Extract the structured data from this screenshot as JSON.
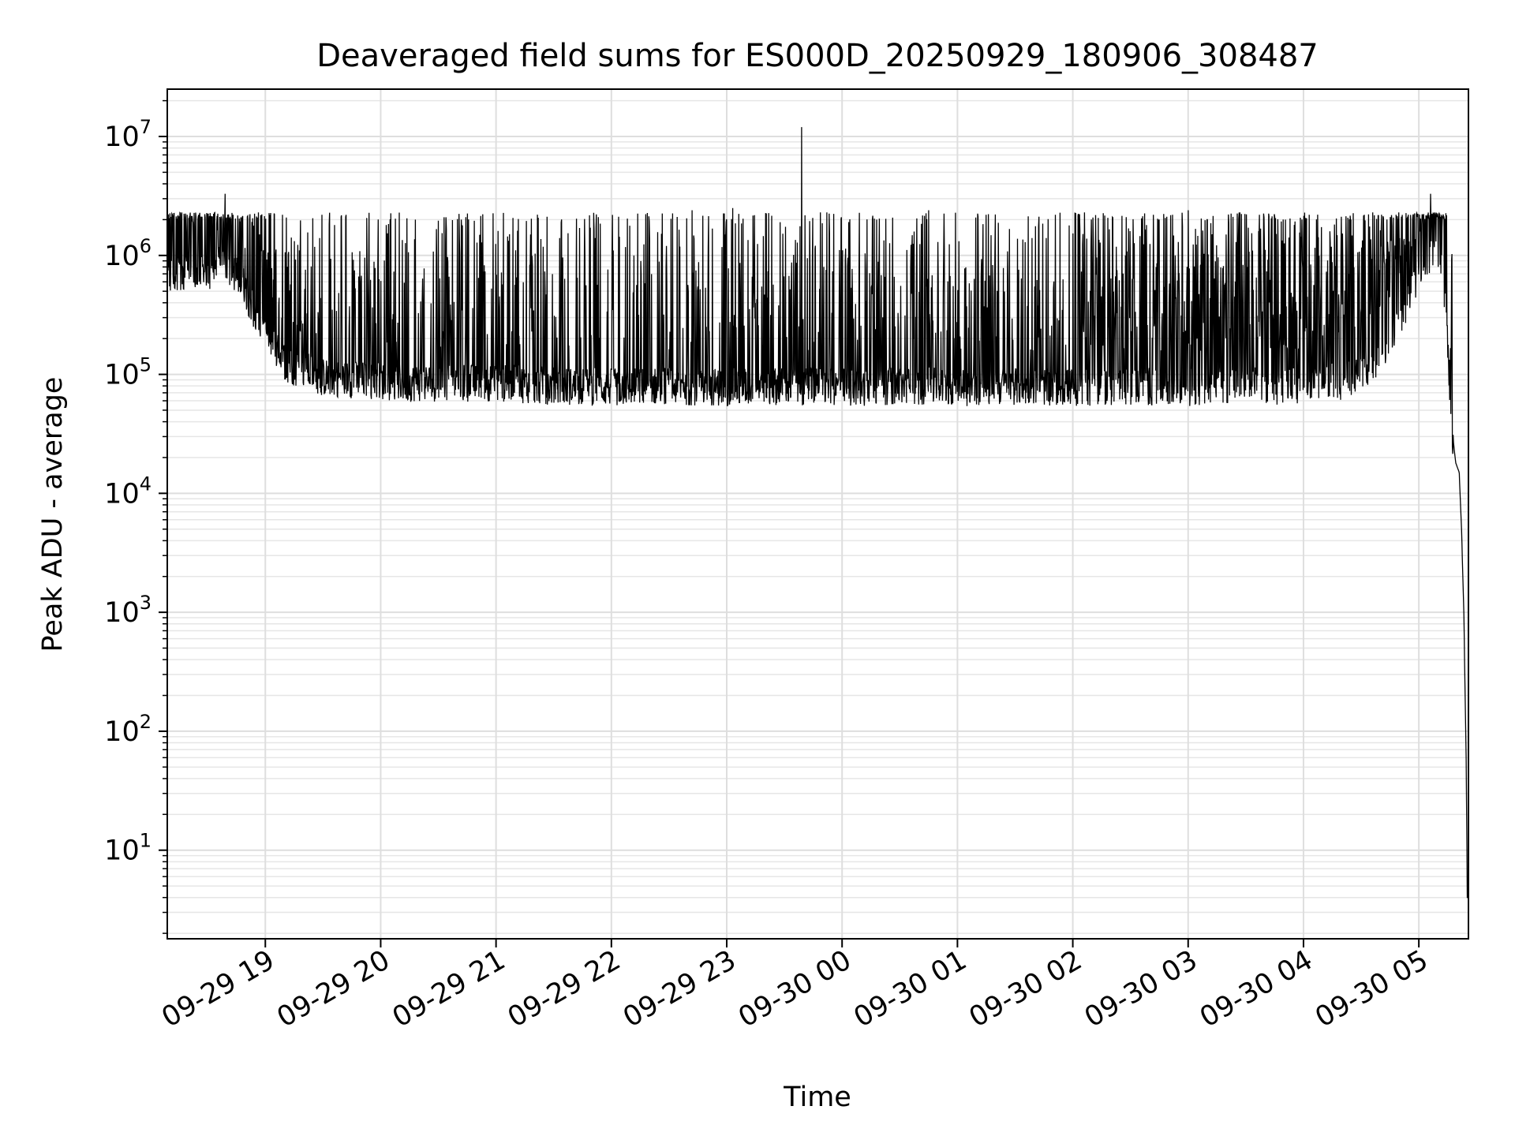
{
  "chart_data": {
    "type": "line",
    "title": "Deaveraged field sums for ES000D_20250929_180906_308487",
    "xlabel": "Time",
    "ylabel": "Peak ADU - average",
    "yscale": "log",
    "ylim": [
      1.8,
      25000000
    ],
    "xlim_hours": [
      18.15,
      29.43
    ],
    "x_ticks": [
      {
        "hour": 19,
        "label": "09-29 19"
      },
      {
        "hour": 20,
        "label": "09-29 20"
      },
      {
        "hour": 21,
        "label": "09-29 21"
      },
      {
        "hour": 22,
        "label": "09-29 22"
      },
      {
        "hour": 23,
        "label": "09-29 23"
      },
      {
        "hour": 24,
        "label": "09-30 00"
      },
      {
        "hour": 25,
        "label": "09-30 01"
      },
      {
        "hour": 26,
        "label": "09-30 02"
      },
      {
        "hour": 27,
        "label": "09-30 03"
      },
      {
        "hour": 28,
        "label": "09-30 04"
      },
      {
        "hour": 29,
        "label": "09-30 05"
      }
    ],
    "y_ticks": [
      {
        "value": 10,
        "base": "10",
        "exp": "1"
      },
      {
        "value": 100,
        "base": "10",
        "exp": "2"
      },
      {
        "value": 1000,
        "base": "10",
        "exp": "3"
      },
      {
        "value": 10000,
        "base": "10",
        "exp": "4"
      },
      {
        "value": 100000,
        "base": "10",
        "exp": "5"
      },
      {
        "value": 1000000,
        "base": "10",
        "exp": "6"
      },
      {
        "value": 10000000,
        "base": "10",
        "exp": "7"
      }
    ],
    "grid": true,
    "series": [
      {
        "name": "Deaveraged field sum",
        "color": "#000000",
        "baseline_points": [
          [
            18.15,
            650000
          ],
          [
            18.25,
            750000
          ],
          [
            18.35,
            650000
          ],
          [
            18.5,
            700000
          ],
          [
            18.65,
            900000
          ],
          [
            18.8,
            600000
          ],
          [
            18.9,
            350000
          ],
          [
            19.0,
            200000
          ],
          [
            19.2,
            120000
          ],
          [
            19.5,
            95000
          ],
          [
            19.8,
            90000
          ],
          [
            20.2,
            85000
          ],
          [
            20.6,
            85000
          ],
          [
            21.0,
            85000
          ],
          [
            21.5,
            80000
          ],
          [
            22.0,
            78000
          ],
          [
            22.5,
            80000
          ],
          [
            23.0,
            78000
          ],
          [
            23.5,
            80000
          ],
          [
            24.0,
            78000
          ],
          [
            24.5,
            80000
          ],
          [
            25.0,
            78000
          ],
          [
            25.5,
            80000
          ],
          [
            26.0,
            78000
          ],
          [
            26.5,
            80000
          ],
          [
            27.0,
            78000
          ],
          [
            27.5,
            80000
          ],
          [
            28.0,
            80000
          ],
          [
            28.4,
            90000
          ],
          [
            28.6,
            120000
          ],
          [
            28.8,
            250000
          ],
          [
            29.0,
            700000
          ],
          [
            29.15,
            1200000
          ],
          [
            29.2,
            800000
          ],
          [
            29.25,
            200000
          ],
          [
            29.28,
            40000
          ],
          [
            29.32,
            18000
          ],
          [
            29.35,
            15000
          ],
          [
            29.37,
            5000
          ],
          [
            29.39,
            1000
          ],
          [
            29.41,
            60
          ],
          [
            29.42,
            4
          ],
          [
            29.43,
            4
          ]
        ],
        "spikes": [
          [
            18.65,
            3300000
          ],
          [
            18.8,
            2100000
          ],
          [
            19.15,
            2200000
          ],
          [
            19.6,
            1800000
          ],
          [
            20.3,
            2000000
          ],
          [
            20.7,
            2000000
          ],
          [
            21.3,
            1500000
          ],
          [
            21.85,
            1600000
          ],
          [
            22.7,
            2400000
          ],
          [
            23.05,
            2500000
          ],
          [
            23.65,
            12000000
          ],
          [
            24.3,
            2000000
          ],
          [
            24.75,
            2400000
          ],
          [
            25.25,
            2200000
          ],
          [
            25.85,
            2200000
          ],
          [
            26.1,
            2300000
          ],
          [
            26.7,
            2200000
          ],
          [
            27.0,
            2400000
          ],
          [
            27.45,
            2300000
          ],
          [
            28.05,
            2200000
          ],
          [
            28.6,
            2300000
          ],
          [
            29.1,
            3300000
          ]
        ]
      }
    ]
  }
}
